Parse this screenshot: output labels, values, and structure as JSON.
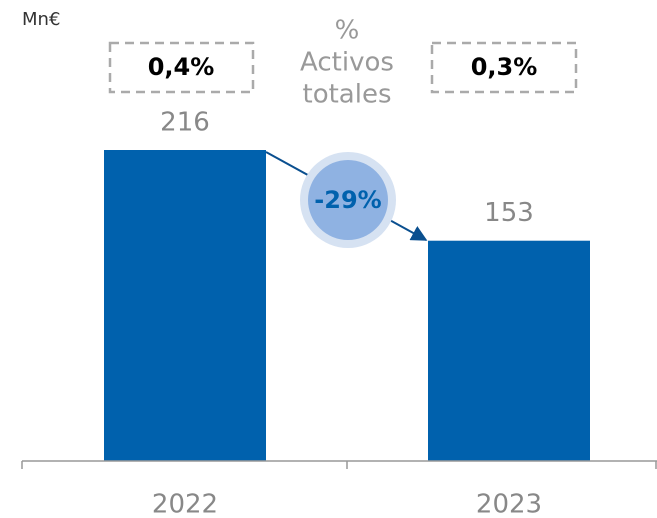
{
  "chart_data": {
    "type": "bar",
    "unit": "Mn€",
    "categories": [
      "2022",
      "2023"
    ],
    "values": [
      216,
      153
    ],
    "color": "#0061ad",
    "share_label": [
      "%",
      "Activos",
      "totales"
    ],
    "shares": [
      "0,4%",
      "0,3%"
    ],
    "change": "-29%"
  }
}
